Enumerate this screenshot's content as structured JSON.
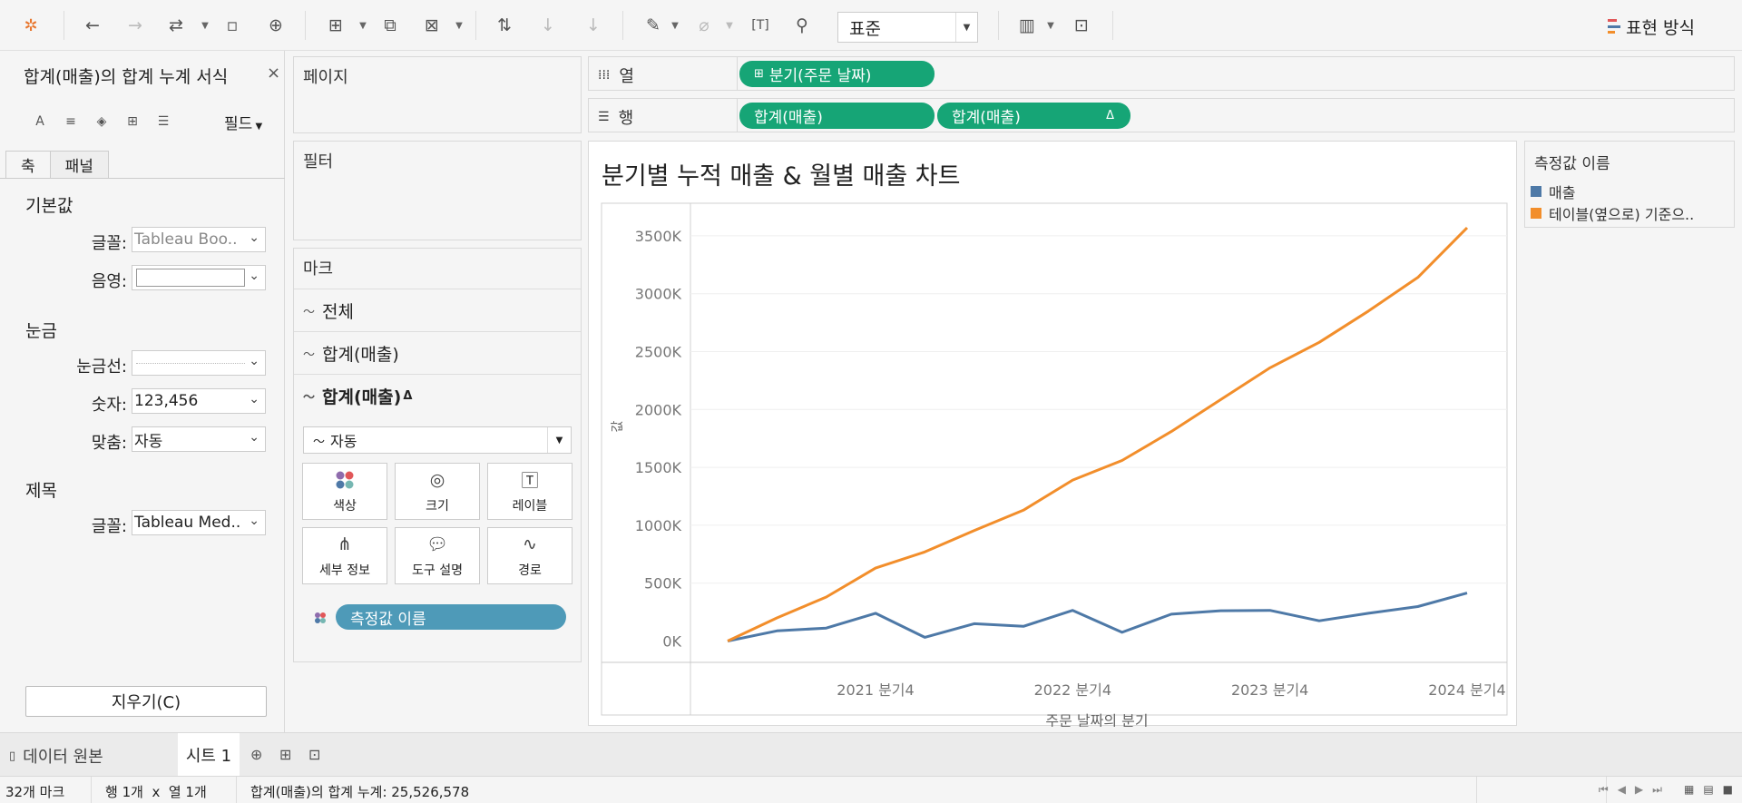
{
  "toolbar": {
    "format_select": "표준",
    "show_me": "표현 방식",
    "icons": [
      "tableau-logo-icon",
      "undo-icon",
      "redo-icon",
      "replay-icon",
      "save-icon",
      "new-datasource-icon",
      "new-worksheet-icon",
      "duplicate-icon",
      "clear-sheet-icon",
      "swap-icon",
      "sort-asc-icon",
      "sort-desc-icon",
      "highlight-icon",
      "group-icon",
      "label-icon",
      "pin-icon",
      "show-cards-icon",
      "presentation-icon"
    ]
  },
  "format_pane": {
    "title": "합계(매출)의 합계 누계 서식",
    "close": "×",
    "field_label": "필드",
    "tabs": [
      "축",
      "패널"
    ],
    "section_default": "기본값",
    "font_label": "글꼴:",
    "font_value": "Tableau Boo..",
    "shading_label": "음영:",
    "section_ticks": "눈금",
    "tickline_label": "눈금선:",
    "number_label": "숫자:",
    "number_value": "123,456",
    "align_label": "맞춤:",
    "align_value": "자동",
    "section_title": "제목",
    "title_font_label": "글꼴:",
    "title_font_value": "Tableau Med..",
    "clear_button": "지우기(C)"
  },
  "pages": {
    "title": "페이지"
  },
  "filters": {
    "title": "필터"
  },
  "marks": {
    "title": "마크",
    "rows": [
      {
        "label": "전체",
        "bold": false
      },
      {
        "label": "합계(매출)",
        "bold": false
      },
      {
        "label": "합계(매출)",
        "bold": true,
        "delta": "Δ"
      }
    ],
    "type": "자동",
    "buttons": [
      "색상",
      "크기",
      "레이블",
      "세부 정보",
      "도구 설명",
      "경로"
    ],
    "pill": "측정값 이름"
  },
  "columns_shelf": {
    "label": "열",
    "pill": "분기(주문 날짜)"
  },
  "rows_shelf": {
    "label": "행",
    "pill1": "합계(매출)",
    "pill2": "합계(매출)",
    "pill2_delta": "Δ"
  },
  "chart_data": {
    "type": "line",
    "title": "분기별 누적 매출 & 월별 매출 차트",
    "xlabel": "주문 날짜의 분기",
    "ylabel": "값",
    "x_tick_labels": [
      "2021 분기4",
      "2022 분기4",
      "2023 분기4",
      "2024 분기4"
    ],
    "y_tick_labels": [
      "0K",
      "500K",
      "1000K",
      "1500K",
      "2000K",
      "2500K",
      "3000K",
      "3500K"
    ],
    "ylim": [
      -90000,
      3750000
    ],
    "x": [
      "2021 분기1",
      "2021 분기2",
      "2021 분기3",
      "2021 분기4",
      "2022 분기1",
      "2022 분기2",
      "2022 분기3",
      "2022 분기4",
      "2023 분기1",
      "2023 분기2",
      "2023 분기3",
      "2023 분기4",
      "2024 분기1",
      "2024 분기2",
      "2024 분기3",
      "2024 분기4"
    ],
    "series": [
      {
        "name": "매출",
        "color": "#4e79a7",
        "values": [
          0,
          88000,
          112000,
          240000,
          32000,
          150000,
          127000,
          265000,
          75000,
          232000,
          262000,
          265000,
          175000,
          240000,
          298000,
          415000
        ]
      },
      {
        "name": "테이블(옆으로) 기준으..",
        "color": "#f28e2b",
        "values": [
          0,
          200000,
          380000,
          630000,
          770000,
          955000,
          1130000,
          1390000,
          1560000,
          1810000,
          2085000,
          2360000,
          2580000,
          2850000,
          3140000,
          3570000
        ]
      }
    ]
  },
  "legend": {
    "title": "측정값 이름",
    "items": [
      {
        "label": "매출",
        "color": "#4e79a7"
      },
      {
        "label": "테이블(옆으로) 기준으..",
        "color": "#f28e2b"
      }
    ]
  },
  "tabs": {
    "datasource": "데이터 원본",
    "sheet": "시트 1"
  },
  "status": {
    "marks": "32개 마크",
    "rows_cols": "행 1개  x  열 1개",
    "sum": "합계(매출)의 합계 누계: 25,526,578"
  }
}
